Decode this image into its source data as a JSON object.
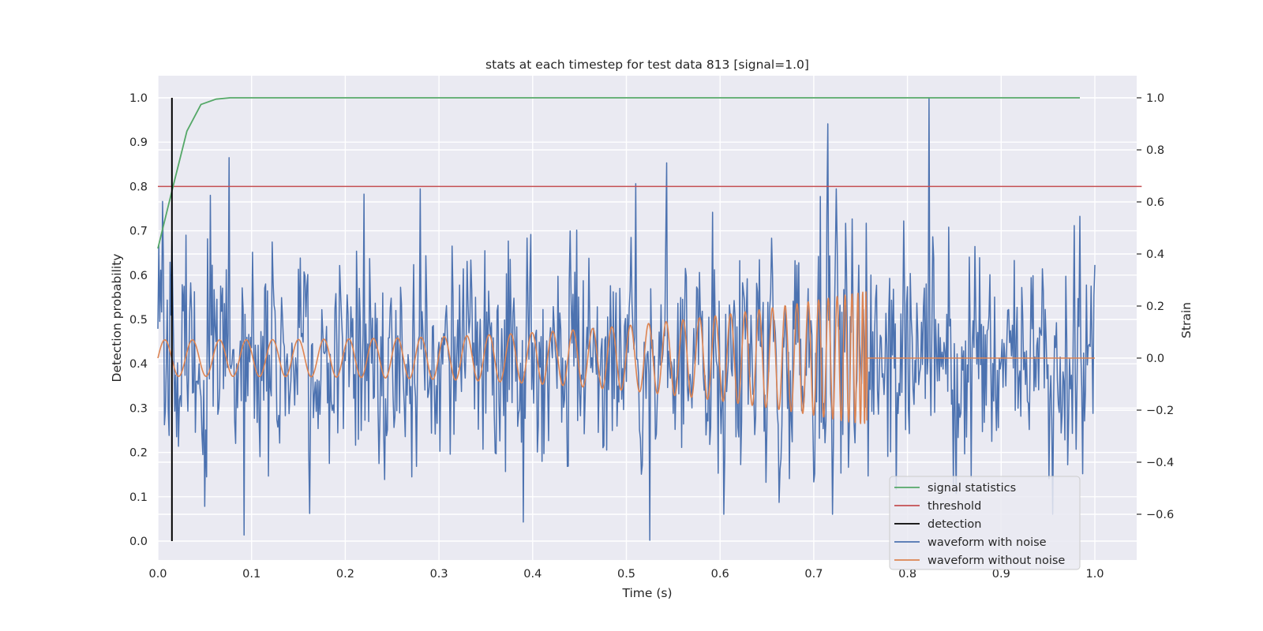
{
  "chart_data": {
    "type": "line",
    "title": "stats at each timestep for test data 813 [signal=1.0]",
    "xlabel": "Time (s)",
    "ylabel_left": "Detection probability",
    "ylabel_right": "Strain",
    "xlim": [
      0.0,
      1.05
    ],
    "ylim_left": [
      -0.05,
      1.05
    ],
    "ylim_right": [
      -0.78,
      1.08
    ],
    "xticks": [
      "0.0",
      "0.1",
      "0.2",
      "0.3",
      "0.4",
      "0.5",
      "0.6",
      "0.7",
      "0.8",
      "0.9",
      "1.0"
    ],
    "yticks_left": [
      "0.0",
      "0.1",
      "0.2",
      "0.3",
      "0.4",
      "0.5",
      "0.6",
      "0.7",
      "0.8",
      "0.9",
      "1.0"
    ],
    "yticks_right": [
      "−0.6",
      "−0.4",
      "−0.2",
      "0.0",
      "0.2",
      "0.4",
      "0.6",
      "0.8",
      "1.0"
    ],
    "grid": true,
    "legend_position": "lower-right",
    "colors": {
      "background": "#eaeaf2",
      "grid": "#ffffff",
      "signal_statistics": "#55a868",
      "threshold": "#c44e52",
      "detection": "#000000",
      "waveform_with_noise": "#4c72b0",
      "waveform_without_noise": "#dd8452"
    },
    "series": [
      {
        "name": "signal statistics",
        "axis": "left",
        "x": [
          0.0,
          0.015,
          0.031,
          0.046,
          0.062,
          0.077,
          0.093,
          0.2,
          0.5,
          0.8,
          0.984
        ],
        "values": [
          0.66,
          0.79,
          0.925,
          0.985,
          0.997,
          1.0,
          1.0,
          1.0,
          1.0,
          1.0,
          1.0
        ]
      },
      {
        "name": "threshold",
        "axis": "left",
        "x": [
          0.0,
          1.05
        ],
        "values": [
          0.8,
          0.8
        ]
      },
      {
        "name": "detection",
        "axis": "left",
        "x": [
          0.015,
          0.015
        ],
        "values": [
          0.0,
          1.0
        ]
      },
      {
        "name": "waveform with noise",
        "axis": "right",
        "t_range": [
          0.0,
          1.0
        ],
        "min": -0.7,
        "max": 1.0,
        "peaks": [
          {
            "t": 0.076,
            "value": 0.77
          },
          {
            "t": 0.22,
            "value": 0.63
          },
          {
            "t": 0.543,
            "value": 0.75
          },
          {
            "t": 0.51,
            "value": 0.67
          },
          {
            "t": 0.715,
            "value": 0.9
          },
          {
            "t": 0.823,
            "value": 1.0
          },
          {
            "t": 0.092,
            "value": -0.68
          },
          {
            "t": 0.525,
            "value": -0.7
          },
          {
            "t": 0.39,
            "value": -0.63
          },
          {
            "t": 0.955,
            "value": -0.6
          }
        ]
      },
      {
        "name": "waveform without noise",
        "axis": "right",
        "t_range": [
          0.0,
          1.0
        ],
        "merger_time": 0.757,
        "amplitude_start": 0.07,
        "amplitude_merger": 0.26,
        "post_merger_value": 0.0
      }
    ]
  }
}
